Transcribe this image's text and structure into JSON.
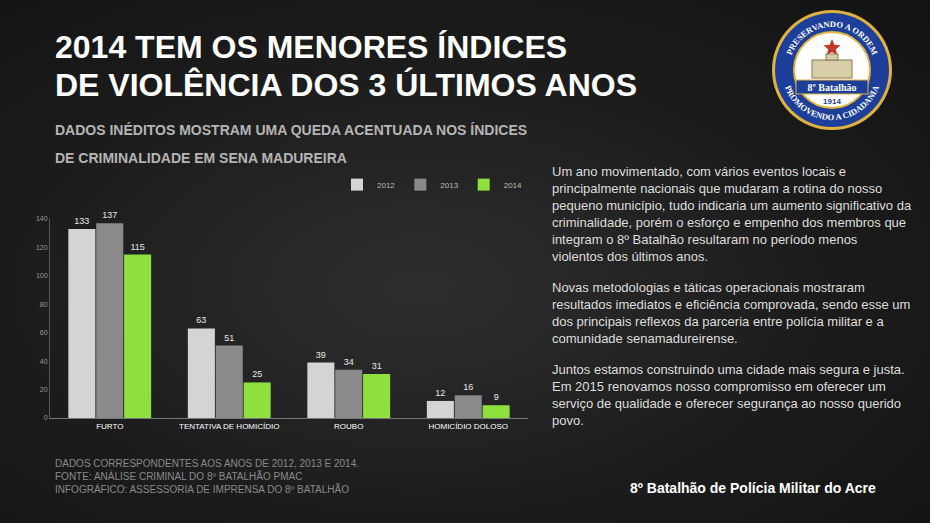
{
  "header": {
    "title": [
      "2014 TEM OS MENORES ÍNDICES",
      "DE VIOLÊNCIA DOS 3 ÚLTIMOS ANOS"
    ],
    "subtitle": [
      "DADOS INÉDITOS MOSTRAM UMA QUEDA ACENTUADA NOS ÍNDICES",
      "DE CRIMINALIDADE EM SENA MADUREIRA"
    ]
  },
  "chart_data": {
    "type": "bar",
    "categories": [
      "FURTO",
      "TENTATIVA DE HOMICÍDIO",
      "ROUBO",
      "HOMICÍDIO DOLOSO"
    ],
    "series": [
      {
        "name": "2012",
        "color": "#d4d4d4",
        "values": [
          133,
          63,
          39,
          12
        ]
      },
      {
        "name": "2013",
        "color": "#8a8a8a",
        "values": [
          137,
          51,
          34,
          16
        ]
      },
      {
        "name": "2014",
        "color": "#8ee03c",
        "values": [
          115,
          25,
          31,
          9
        ]
      }
    ],
    "ylim": [
      0,
      140
    ],
    "yticks": [
      0,
      20,
      40,
      60,
      80,
      100,
      120,
      140
    ],
    "grid": false,
    "legend": "top right",
    "data_labels": true
  },
  "body": [
    "Um ano movimentado, com vários eventos locais e principalmente nacionais que mudaram a rotina do nosso pequeno município, tudo indicaria um aumento significativo da criminalidade, porém o esforço e empenho dos membros que integram o 8º Batalhão resultaram no período menos violentos dos últimos  anos.",
    "Novas metodologias e táticas operacionais mostraram resultados imediatos e eficiência comprovada, sendo esse um dos principais reflexos da parceria entre polícia militar e a comunidade senamadureirense.",
    "Juntos estamos construindo uma cidade mais segura e justa. Em 2015 renovamos nosso compromisso em oferecer um serviço de qualidade e oferecer segurança ao nosso querido povo."
  ],
  "footer": [
    "DADOS CORRESPONDENTES AOS ANOS DE 2012, 2013 E 2014.",
    "FONTE: ANÁLISE CRIMINAL DO 8º BATALHÃO PMAC",
    "INFOGRÁFICO: ASSESSORIA DE IMPRENSA DO 8º BATALHÃO"
  ],
  "signature": "8º Batalhão de Polícia Militar do Acre",
  "badge": {
    "top_text": "PRESERVANDO A ORDEM",
    "bottom_text": "PROMOVENDO A CIDADANIA",
    "banner": "8º Batalhão",
    "year": "1914"
  }
}
